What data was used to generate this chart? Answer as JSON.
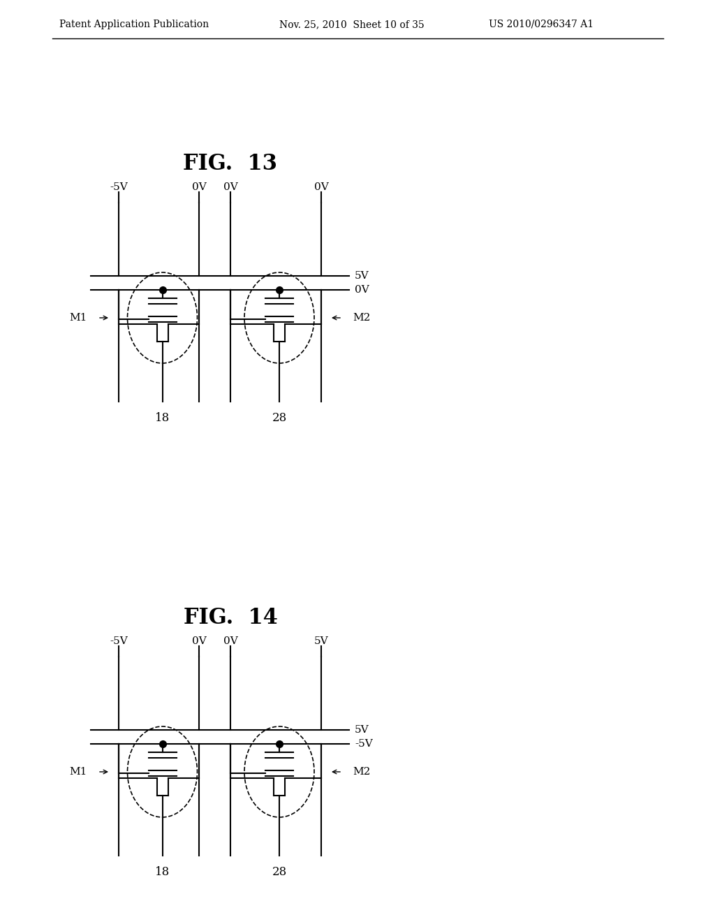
{
  "title": "FIG. 13 and FIG. 14",
  "header_left": "Patent Application Publication",
  "header_mid": "Nov. 25, 2010  Sheet 10 of 35",
  "header_right": "US 2010/0296347 A1",
  "fig13": {
    "title": "FIG. 13",
    "voltages_top": [
      "-5V",
      "0V",
      "0V",
      "0V"
    ],
    "voltages_right": [
      "5V",
      "0V"
    ],
    "labels_left": [
      "M1"
    ],
    "labels_right": [
      "M2"
    ],
    "labels_bottom": [
      "18",
      "28"
    ]
  },
  "fig14": {
    "title": "FIG. 14",
    "voltages_top": [
      "-5V",
      "0V",
      "0V",
      "5V"
    ],
    "voltages_right": [
      "5V",
      "-5V"
    ],
    "labels_left": [
      "M1"
    ],
    "labels_right": [
      "M2"
    ],
    "labels_bottom": [
      "18",
      "28"
    ]
  },
  "bg_color": "#ffffff",
  "line_color": "#000000"
}
